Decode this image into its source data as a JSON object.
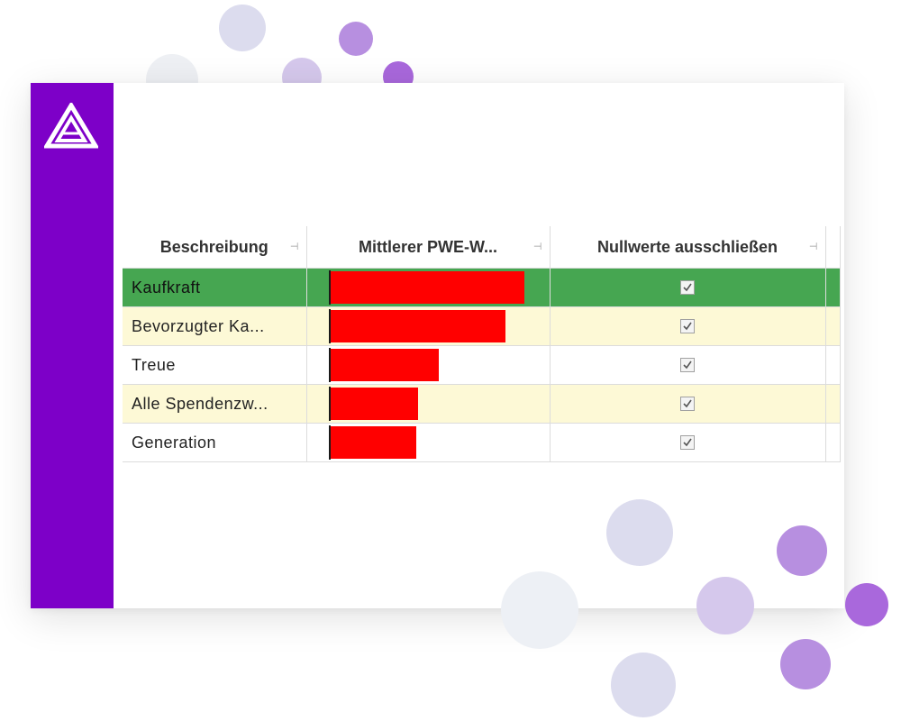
{
  "brand": {
    "accent": "#7d00c8",
    "logo_icon": "triangle-logo-icon"
  },
  "grid": {
    "columns": [
      {
        "label": "Beschreibung",
        "pin_icon": "pin-icon"
      },
      {
        "label": "Mittlerer  PWE-W...",
        "pin_icon": "pin-icon"
      },
      {
        "label": "Nullwerte ausschließen",
        "pin_icon": "pin-icon"
      }
    ],
    "rows": [
      {
        "label": "Kaufkraft",
        "bar_value": 1.0,
        "exclude_null": true,
        "selected": true
      },
      {
        "label": "Bevorzugter  Ka...",
        "bar_value": 0.9,
        "exclude_null": true,
        "selected": false
      },
      {
        "label": "Treue",
        "bar_value": 0.56,
        "exclude_null": true,
        "selected": false
      },
      {
        "label": "Alle  Spendenzw...",
        "bar_value": 0.45,
        "exclude_null": true,
        "selected": false
      },
      {
        "label": "Generation",
        "bar_value": 0.44,
        "exclude_null": true,
        "selected": false
      }
    ],
    "colors": {
      "selected_row": "#46a651",
      "alt_row": "#fdf9d6",
      "bar": "#ff0000"
    }
  }
}
